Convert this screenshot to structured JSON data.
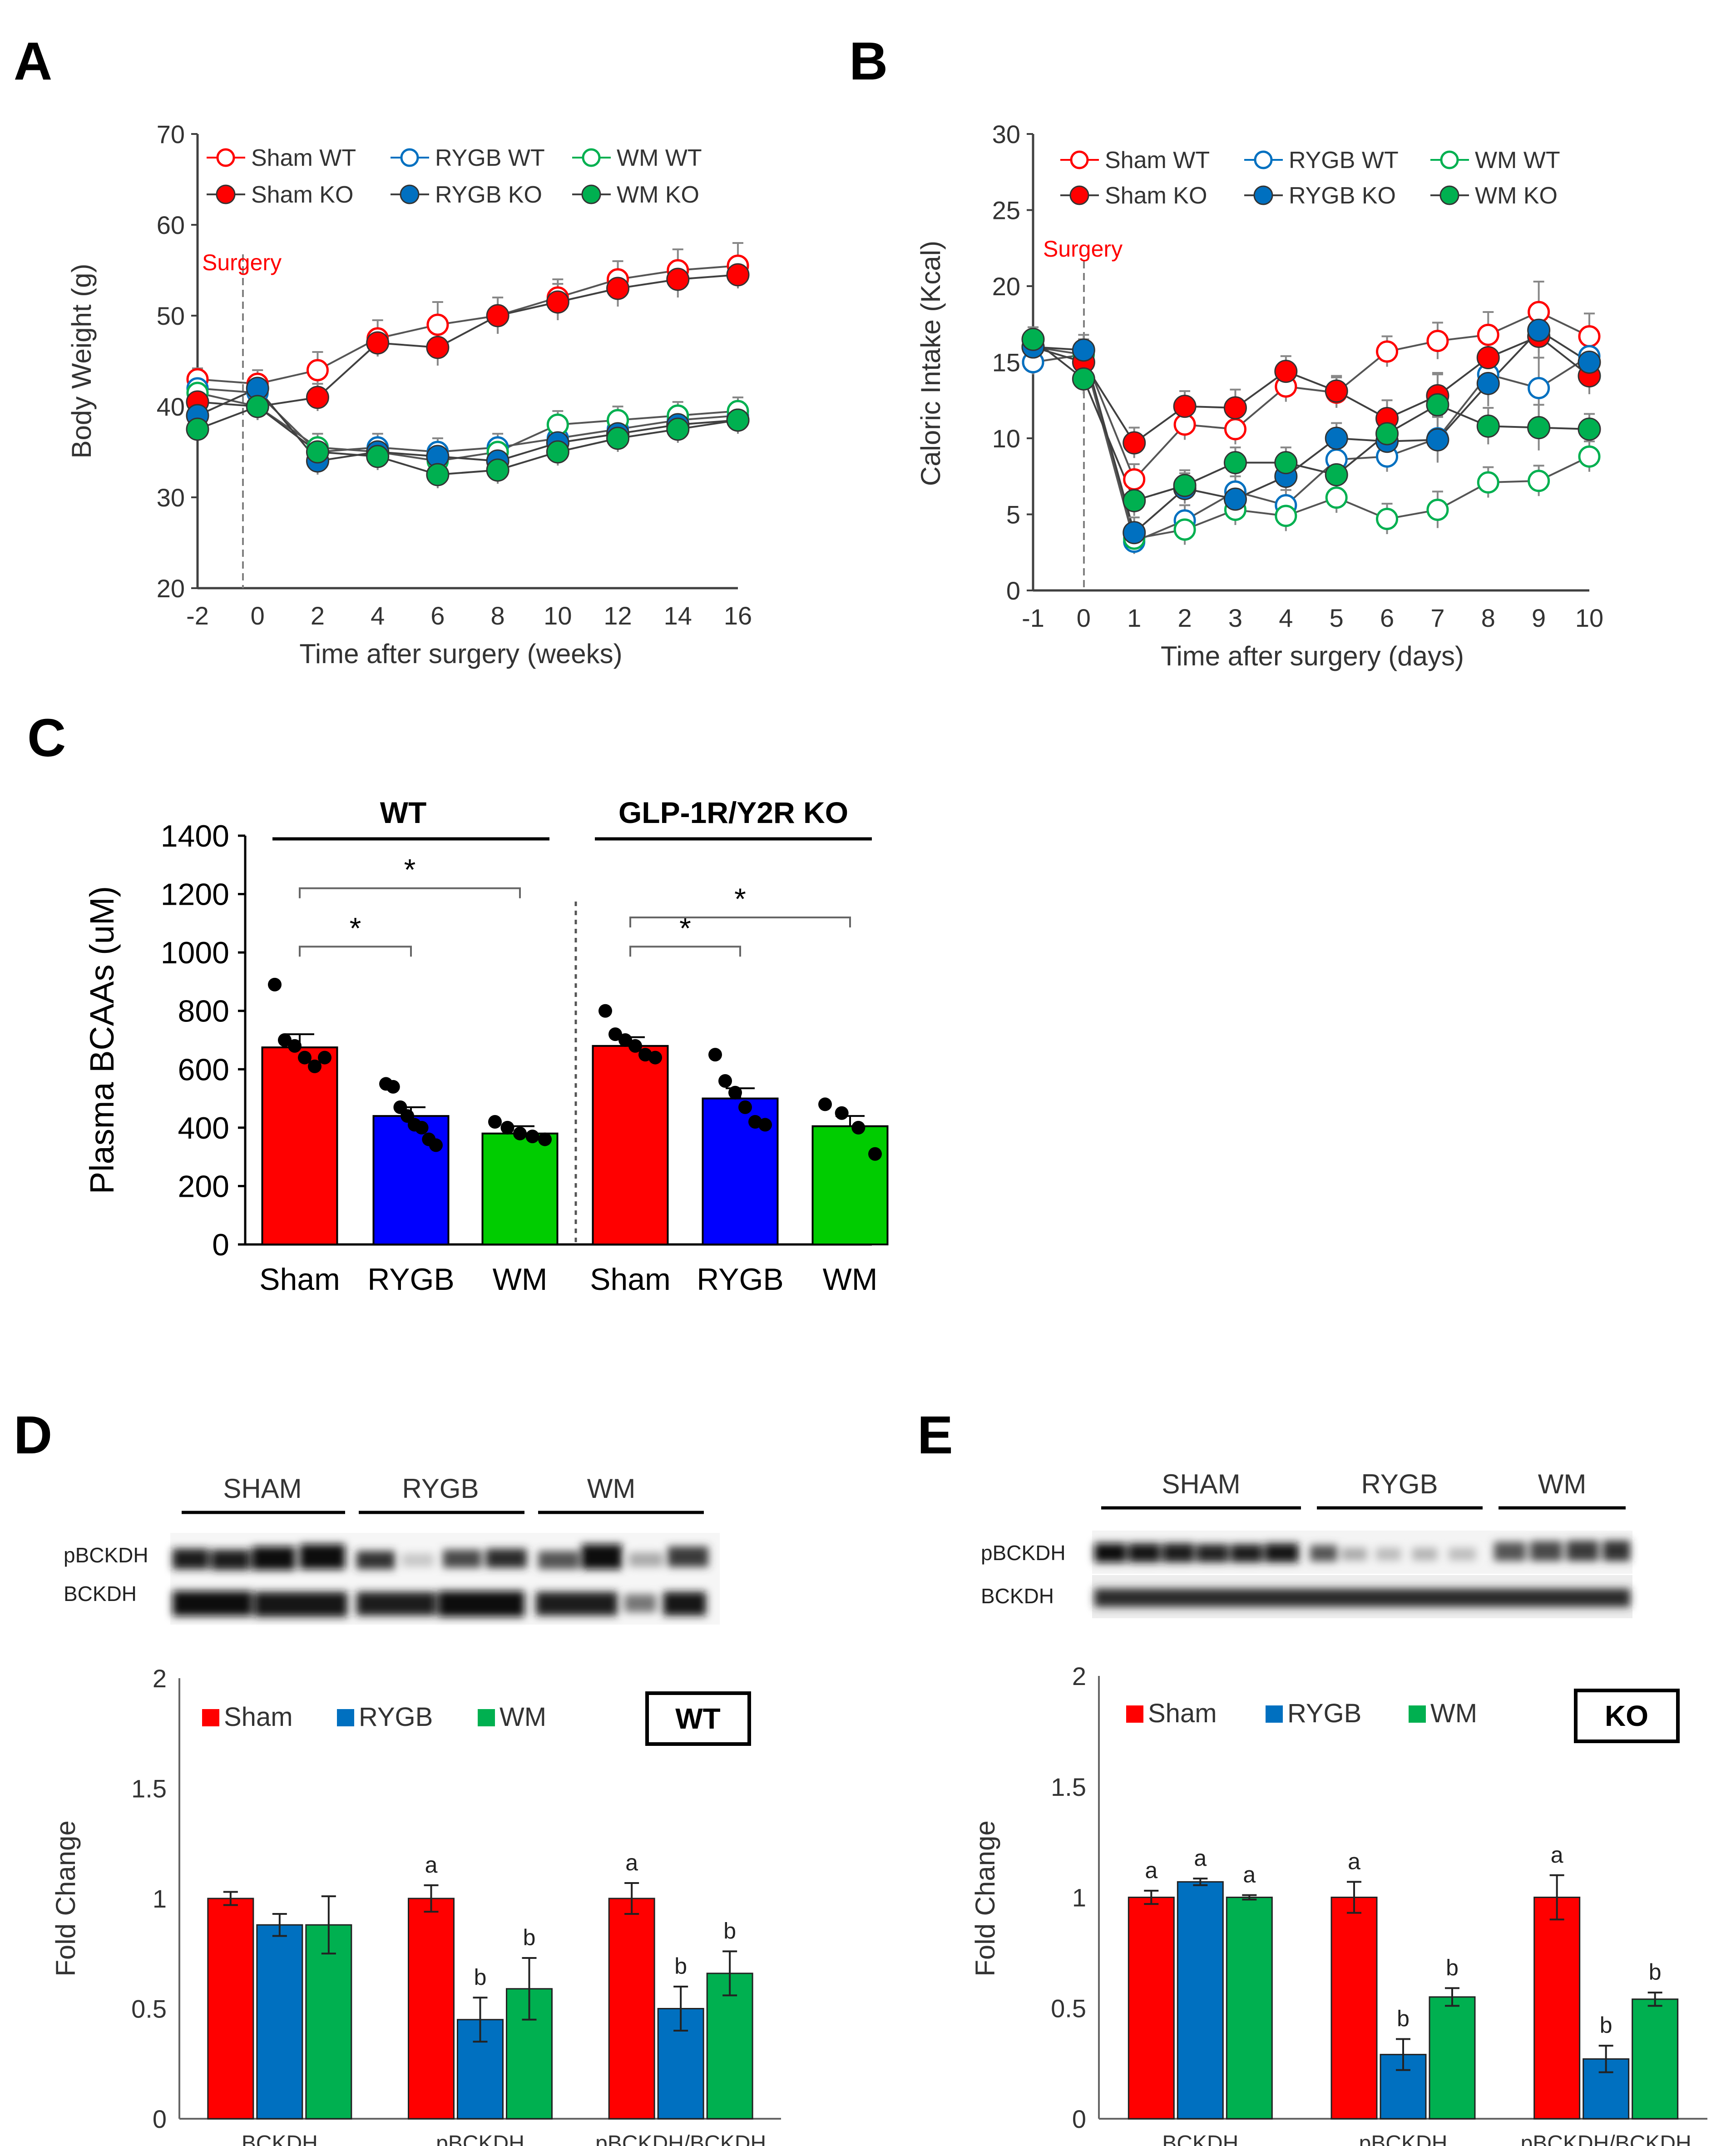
{
  "panel_labels": {
    "A": "A",
    "B": "B",
    "C": "C",
    "D": "D",
    "E": "E"
  },
  "colors": {
    "sham": "#ff0000",
    "rygb": "#0070c0",
    "wm": "#00b050",
    "rygb_c": "#0000ff",
    "wm_c": "#00cc00",
    "annotation": "#ff0000",
    "axis": "#404040"
  },
  "chart_data": [
    {
      "panel": "A",
      "type": "line",
      "title": "",
      "xlabel": "Time after surgery (weeks)",
      "ylabel": "Body Weight (g)",
      "xlim": [
        -2,
        16
      ],
      "ylim": [
        20,
        70
      ],
      "x_ticks": [
        "-2",
        "0",
        "2",
        "4",
        "6",
        "8",
        "10",
        "12",
        "14",
        "16"
      ],
      "y_ticks": [
        "20",
        "30",
        "40",
        "50",
        "60",
        "70"
      ],
      "annotation": "Surgery",
      "x": [
        -2,
        0,
        2,
        4,
        6,
        8,
        10,
        12,
        14,
        16
      ],
      "series": [
        {
          "name": "Sham WT",
          "group": "sham",
          "filled": false,
          "values": [
            43,
            42.5,
            44,
            47.5,
            49,
            50,
            52,
            54,
            55,
            55.5
          ],
          "err": [
            1.2,
            1.5,
            2,
            2,
            2.5,
            2,
            2,
            2,
            2.3,
            2.5
          ]
        },
        {
          "name": "RYGB WT",
          "group": "rygb",
          "filled": false,
          "values": [
            42,
            41.5,
            35,
            35.5,
            35,
            35.5,
            36.5,
            37.5,
            38.5,
            39
          ],
          "err": [
            1,
            1.5,
            1.5,
            1.5,
            1.5,
            1.5,
            1.5,
            1.5,
            1.5,
            1.5
          ]
        },
        {
          "name": "WM WT",
          "group": "wm",
          "filled": false,
          "values": [
            41.5,
            40,
            35.5,
            35,
            34,
            35,
            38,
            38.5,
            39,
            39.5
          ],
          "err": [
            1,
            1.5,
            1.5,
            1.5,
            1.5,
            1.5,
            1.5,
            1.5,
            1.5,
            1.5
          ]
        },
        {
          "name": "Sham KO",
          "group": "sham",
          "filled": true,
          "values": [
            40.5,
            40,
            41,
            47,
            46.5,
            50,
            51.5,
            53,
            54,
            54.5
          ],
          "err": [
            1.2,
            1.5,
            1.5,
            1.5,
            2,
            2,
            2,
            2,
            2,
            1.5
          ]
        },
        {
          "name": "RYGB KO",
          "group": "rygb",
          "filled": true,
          "values": [
            39,
            42,
            34,
            35,
            34.5,
            34,
            36,
            37,
            38,
            38.5
          ],
          "err": [
            1,
            1.5,
            1.5,
            1.5,
            1.5,
            1.5,
            1.5,
            1.5,
            1.5,
            1.5
          ]
        },
        {
          "name": "WM KO",
          "group": "wm",
          "filled": true,
          "values": [
            37.5,
            40,
            35,
            34.5,
            32.5,
            33,
            35,
            36.5,
            37.5,
            38.5
          ],
          "err": [
            1,
            1.5,
            1.5,
            1.5,
            1.5,
            1.5,
            1.5,
            1.5,
            1.5,
            1.5
          ]
        }
      ]
    },
    {
      "panel": "B",
      "type": "line",
      "title": "",
      "xlabel": "Time after surgery (days)",
      "ylabel": "Caloric Intake (Kcal)",
      "xlim": [
        -1,
        10
      ],
      "ylim": [
        0,
        30
      ],
      "x_ticks": [
        "-1",
        "0",
        "1",
        "2",
        "3",
        "4",
        "5",
        "6",
        "7",
        "8",
        "9",
        "10"
      ],
      "y_ticks": [
        "0",
        "5",
        "10",
        "15",
        "20",
        "25",
        "30"
      ],
      "annotation": "Surgery",
      "x": [
        -1,
        0,
        1,
        2,
        3,
        4,
        5,
        6,
        7,
        8,
        9,
        10
      ],
      "series": [
        {
          "name": "Sham WT",
          "group": "sham",
          "filled": false,
          "values": [
            15,
            15.5,
            7.3,
            10.9,
            10.6,
            13.4,
            13.0,
            15.7,
            16.4,
            16.8,
            18.3,
            16.7
          ],
          "err": [
            0.8,
            1,
            1,
            1,
            1,
            1,
            1,
            1,
            1.2,
            1.5,
            2,
            1.5
          ]
        },
        {
          "name": "RYGB WT",
          "group": "rygb",
          "filled": false,
          "values": [
            15,
            15.5,
            3.2,
            4.6,
            6.5,
            5.6,
            8.6,
            8.8,
            10.0,
            14.2,
            13.3,
            15.4
          ],
          "err": [
            0.8,
            1,
            0.8,
            1,
            1,
            1,
            1,
            1,
            1.5,
            1.5,
            2,
            1.5
          ]
        },
        {
          "name": "WM WT",
          "group": "wm",
          "filled": false,
          "values": [
            16,
            15.5,
            3.4,
            4.0,
            5.3,
            4.9,
            6.1,
            4.7,
            5.3,
            7.1,
            7.2,
            8.8
          ],
          "err": [
            0.8,
            1,
            0.8,
            1,
            1,
            1,
            1,
            1,
            1.2,
            1,
            1,
            1
          ]
        },
        {
          "name": "Sham KO",
          "group": "sham",
          "filled": true,
          "values": [
            16,
            15,
            9.7,
            12.1,
            12.0,
            14.4,
            13.1,
            11.3,
            12.8,
            15.3,
            16.7,
            14.1
          ],
          "err": [
            0.8,
            1,
            1,
            1,
            1.2,
            1,
            1,
            1.2,
            1.5,
            1.5,
            1.5,
            1.2
          ]
        },
        {
          "name": "RYGB KO",
          "group": "rygb",
          "filled": true,
          "values": [
            16,
            15.8,
            3.8,
            6.7,
            6.0,
            7.5,
            10.0,
            9.8,
            9.9,
            13.6,
            17.1,
            15.0
          ],
          "err": [
            0.8,
            1,
            1,
            1,
            1,
            1,
            1,
            1,
            1.5,
            1.5,
            1.5,
            1.5
          ]
        },
        {
          "name": "WM KO",
          "group": "wm",
          "filled": true,
          "values": [
            16.5,
            13.9,
            5.9,
            6.9,
            8.4,
            8.4,
            7.6,
            10.3,
            12.2,
            10.8,
            10.7,
            10.6
          ],
          "err": [
            0.8,
            1,
            1,
            1,
            1,
            1,
            1,
            1.2,
            2,
            1.2,
            1.5,
            1
          ]
        }
      ]
    },
    {
      "panel": "C",
      "type": "bar",
      "title": "",
      "xlabel": "",
      "ylabel": "Plasma BCAAs (uM)",
      "ylim": [
        0,
        1400
      ],
      "y_ticks": [
        "0",
        "200",
        "400",
        "600",
        "800",
        "1000",
        "1200",
        "1400"
      ],
      "group_titles": [
        "WT",
        "GLP-1R/Y2R KO"
      ],
      "categories": [
        "Sham",
        "RYGB",
        "WM",
        "Sham",
        "RYGB",
        "WM"
      ],
      "values": [
        675,
        440,
        380,
        680,
        500,
        405
      ],
      "err": [
        45,
        30,
        25,
        30,
        35,
        35
      ],
      "bar_groups": [
        "sham",
        "rygb_c",
        "wm_c",
        "sham",
        "rygb_c",
        "wm_c"
      ],
      "points": [
        [
          890,
          700,
          680,
          640,
          610,
          640
        ],
        [
          550,
          540,
          470,
          440,
          410,
          400,
          360,
          340
        ],
        [
          420,
          400,
          380,
          370,
          360
        ],
        [
          800,
          720,
          700,
          680,
          650,
          640
        ],
        [
          650,
          560,
          520,
          470,
          420,
          410
        ],
        [
          480,
          450,
          400,
          310
        ]
      ],
      "significance": [
        {
          "from": 0,
          "to": 1,
          "label": "*",
          "y": 1020
        },
        {
          "from": 0,
          "to": 2,
          "label": "*",
          "y": 1220
        },
        {
          "from": 3,
          "to": 4,
          "label": "*",
          "y": 1020
        },
        {
          "from": 3,
          "to": 5,
          "label": "*",
          "y": 1120
        }
      ]
    },
    {
      "panel": "D",
      "type": "bar",
      "title": "",
      "xlabel": "",
      "ylabel": "Fold Change",
      "ylim": [
        0,
        2
      ],
      "y_ticks": [
        "0",
        "0.5",
        "1",
        "1.5",
        "2"
      ],
      "categories": [
        "BCKDH",
        "pBCKDH",
        "pBCKDH/BCKDH"
      ],
      "legend": [
        "Sham",
        "RYGB",
        "WM"
      ],
      "genotype_box": "WT",
      "series": [
        {
          "name": "Sham",
          "group": "sham",
          "values": [
            1.0,
            1.0,
            1.0
          ],
          "err": [
            0.03,
            0.06,
            0.07
          ]
        },
        {
          "name": "RYGB",
          "group": "rygb",
          "values": [
            0.88,
            0.45,
            0.5
          ],
          "err": [
            0.05,
            0.1,
            0.1
          ]
        },
        {
          "name": "WM",
          "group": "wm",
          "values": [
            0.88,
            0.59,
            0.66
          ],
          "err": [
            0.13,
            0.14,
            0.1
          ]
        }
      ],
      "letters": [
        [
          "",
          "",
          ""
        ],
        [
          "a",
          "b",
          "b"
        ],
        [
          "a",
          "b",
          "b"
        ]
      ]
    },
    {
      "panel": "E",
      "type": "bar",
      "title": "",
      "xlabel": "",
      "ylabel": "Fold Change",
      "ylim": [
        0,
        2
      ],
      "y_ticks": [
        "0",
        "0.5",
        "1",
        "1.5",
        "2"
      ],
      "categories": [
        "BCKDH",
        "pBCKDH",
        "pBCKDH/BCKDH"
      ],
      "legend": [
        "Sham",
        "RYGB",
        "WM"
      ],
      "genotype_box": "KO",
      "series": [
        {
          "name": "Sham",
          "group": "sham",
          "values": [
            1.0,
            1.0,
            1.0
          ],
          "err": [
            0.03,
            0.07,
            0.1
          ]
        },
        {
          "name": "RYGB",
          "group": "rygb",
          "values": [
            1.07,
            0.29,
            0.27
          ],
          "err": [
            0.015,
            0.07,
            0.06
          ]
        },
        {
          "name": "WM",
          "group": "wm",
          "values": [
            1.0,
            0.55,
            0.54
          ],
          "err": [
            0.01,
            0.04,
            0.03
          ]
        }
      ],
      "letters": [
        [
          "a",
          "a",
          "a"
        ],
        [
          "a",
          "b",
          "b"
        ],
        [
          "a",
          "b",
          "b"
        ]
      ]
    }
  ],
  "blots": {
    "D": {
      "groups": [
        "SHAM",
        "RYGB",
        "WM"
      ],
      "rows": [
        "pBCKDH",
        "BCKDH"
      ]
    },
    "E": {
      "groups": [
        "SHAM",
        "RYGB",
        "WM"
      ],
      "rows": [
        "pBCKDH",
        "BCKDH"
      ]
    }
  }
}
